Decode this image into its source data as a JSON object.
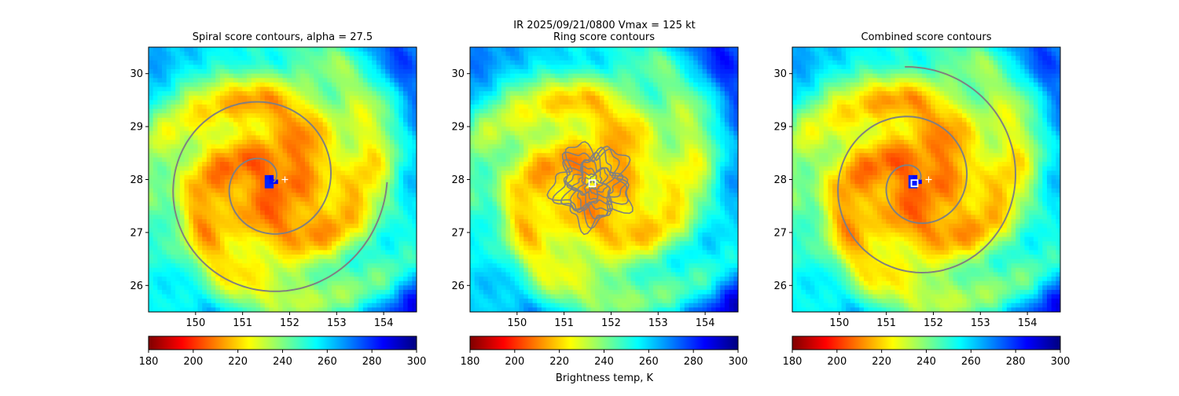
{
  "figure": {
    "suptitle_line1": "IR  2025/09/21/0800    Vmax = 125 kt",
    "colorbar_label": "Brightness temp, K"
  },
  "colors": {
    "contour": "#808080",
    "marker": "#ffffff",
    "colormap": [
      "#7f0000",
      "#ff0000",
      "#ff8000",
      "#ffff00",
      "#80ff80",
      "#00ffff",
      "#0080ff",
      "#0000ff",
      "#00007f"
    ]
  },
  "chart_data": [
    {
      "type": "heatmap",
      "title": "Spiral score contours, alpha = 27.5",
      "xlim": [
        149.0,
        154.7
      ],
      "ylim": [
        25.5,
        30.5
      ],
      "x_ticks": [
        150,
        151,
        152,
        153,
        154
      ],
      "y_ticks": [
        26,
        27,
        28,
        29,
        30
      ],
      "colorbar": {
        "vmin": 180,
        "vmax": 300,
        "ticks": [
          180,
          200,
          220,
          240,
          260,
          280,
          300
        ]
      },
      "field": {
        "variable": "brightness temperature",
        "units": "K",
        "center": [
          151.6,
          27.95
        ],
        "eye_temp": 282,
        "core_temp": 205,
        "outer_temp": 265
      },
      "markers": [
        {
          "kind": "plus",
          "x": 151.9,
          "y": 28.0
        }
      ],
      "contours": [
        {
          "kind": "spiral",
          "center": [
            151.5,
            27.95
          ],
          "r_start": 0.15,
          "r_end": 2.45,
          "turns": 2.0,
          "start_angle": 0.0
        }
      ]
    },
    {
      "type": "heatmap",
      "title": "Ring score contours",
      "xlim": [
        149.0,
        154.7
      ],
      "ylim": [
        25.5,
        30.5
      ],
      "x_ticks": [
        150,
        151,
        152,
        153,
        154
      ],
      "y_ticks": [
        26,
        27,
        28,
        29,
        30
      ],
      "colorbar": {
        "vmin": 180,
        "vmax": 300,
        "ticks": [
          180,
          200,
          220,
          240,
          260,
          280,
          300
        ]
      },
      "field": {
        "variable": "brightness temperature",
        "units": "K",
        "center": [
          151.6,
          27.95
        ],
        "eye_temp": 225,
        "core_temp": 210,
        "outer_temp": 262
      },
      "markers": [
        {
          "kind": "square",
          "x": 151.6,
          "y": 27.93
        }
      ],
      "contours": [
        {
          "kind": "ring-cluster",
          "center": [
            151.6,
            27.9
          ],
          "radius_x": 0.75,
          "radius_y": 0.7
        }
      ]
    },
    {
      "type": "heatmap",
      "title": "Combined score contours",
      "xlim": [
        149.0,
        154.7
      ],
      "ylim": [
        25.5,
        30.5
      ],
      "x_ticks": [
        150,
        151,
        152,
        153,
        154
      ],
      "y_ticks": [
        26,
        27,
        28,
        29,
        30
      ],
      "colorbar": {
        "vmin": 180,
        "vmax": 300,
        "ticks": [
          180,
          200,
          220,
          240,
          260,
          280,
          300
        ]
      },
      "field": {
        "variable": "brightness temperature",
        "units": "K",
        "center": [
          151.6,
          27.95
        ],
        "eye_temp": 282,
        "core_temp": 205,
        "outer_temp": 265
      },
      "markers": [
        {
          "kind": "plus",
          "x": 151.9,
          "y": 28.0
        },
        {
          "kind": "square",
          "x": 151.6,
          "y": 27.93
        }
      ],
      "contours": [
        {
          "kind": "spiral",
          "center": [
            151.6,
            27.95
          ],
          "r_start": 0.12,
          "r_end": 2.3,
          "turns": 2.2,
          "start_angle": 0.4
        }
      ]
    }
  ]
}
